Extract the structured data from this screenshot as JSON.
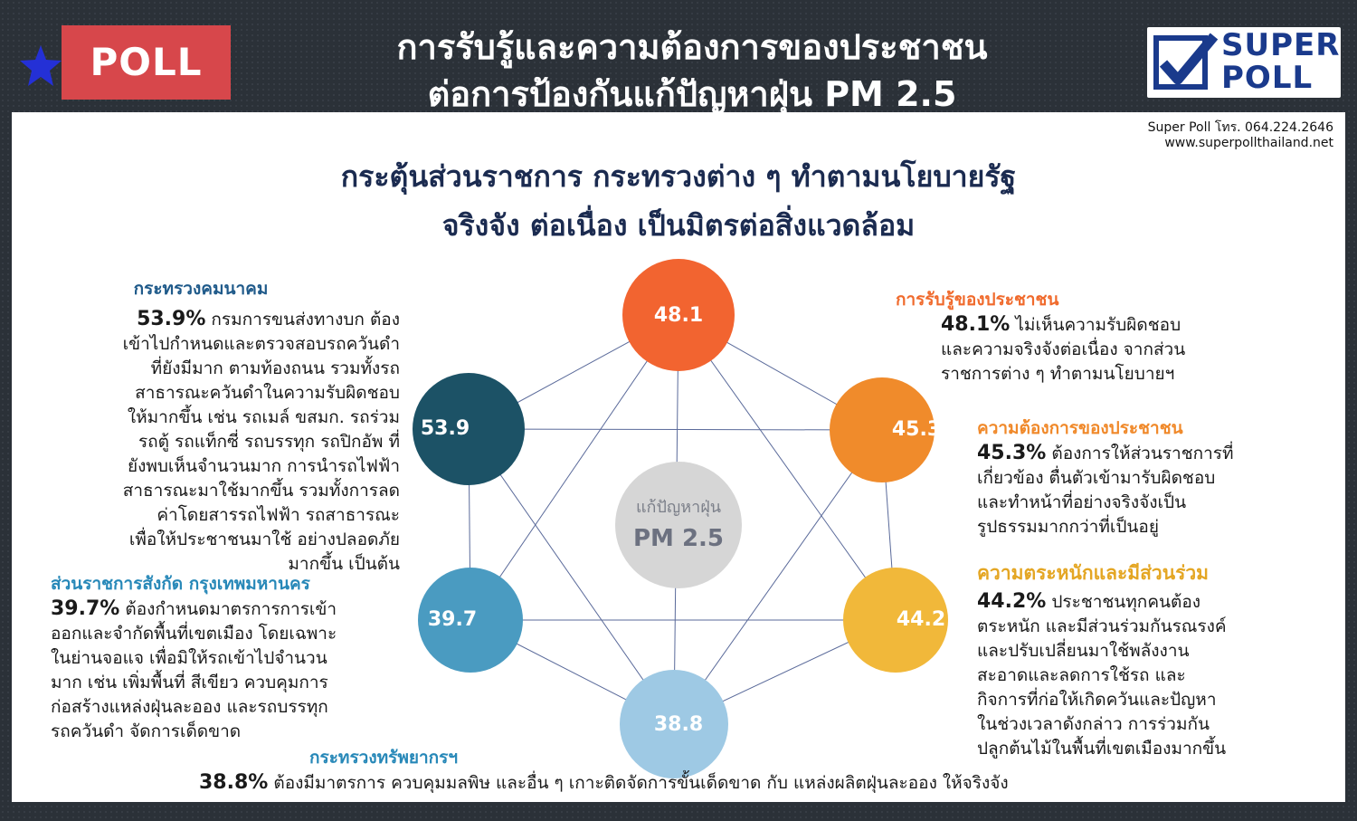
{
  "header": {
    "badge": "POLL",
    "title_line1": "การรับรู้และความต้องการของประชาชน",
    "title_line2": "ต่อการป้องกันแก้ปัญหาฝุ่น PM 2.5"
  },
  "logo": {
    "word1": "SUPER",
    "word2": "POLL"
  },
  "contact": {
    "phone": "Super Poll โทร. 064.224.2646",
    "website": "www.superpollthailand.net"
  },
  "subhead": {
    "line1": "กระตุ้นส่วนราชการ กระทรวงต่าง ๆ ทำตามนโยบายรัฐ",
    "line2": "จริงจัง ต่อเนื่อง เป็นมิตรต่อสิ่งแวดล้อม"
  },
  "center": {
    "line1": "แก้ปัญหาฝุ่น",
    "line2": "PM 2.5"
  },
  "nodes": [
    {
      "label": "48.1",
      "color": "#f26430"
    },
    {
      "label": "45.3",
      "color": "#f08b2b"
    },
    {
      "label": "44.2",
      "color": "#f1b83a"
    },
    {
      "label": "38.8",
      "color": "#9ec9e4"
    },
    {
      "label": "39.7",
      "color": "#4a9bc1"
    },
    {
      "label": "53.9",
      "color": "#1c5266"
    }
  ],
  "blocks": {
    "transport": {
      "heading": "กระทรวงคมนาคม",
      "pct": "53.9%",
      "lines": [
        " กรมการขนส่งทางบก ต้อง",
        "เข้าไปกำหนดและตรวจสอบรถควันดำ",
        "ที่ยังมีมาก ตามท้องถนน รวมทั้งรถ",
        "สาธารณะควันดำในความรับผิดชอบ",
        "ให้มากขึ้น เช่น รถเมล์ ขสมก. รถร่วม",
        "รถตู้ รถแท็กซี่ รถบรรทุก รถปิกอัพ ที่",
        "ยังพบเห็นจำนวนมาก การนำรถไฟฟ้า",
        "สาธารณะมาใช้มากขึ้น รวมทั้งการลด",
        "ค่าโดยสารรถไฟฟ้า รถสาธารณะ",
        "เพื่อให้ประชาชนมาใช้ อย่างปลอดภัย",
        "มากขึ้น เป็นต้น"
      ]
    },
    "bangkok": {
      "heading": "ส่วนราชการสังกัด กรุงเทพมหานคร",
      "pct": "39.7%",
      "lines": [
        " ต้องกำหนดมาตรการการเข้า",
        "ออกและจำกัดพื้นที่เขตเมือง โดยเฉพาะ",
        "ในย่านจอแจ เพื่อมิให้รถเข้าไปจำนวน",
        "มาก เช่น เพิ่มพื้นที่ สีเขียว  ควบคุมการ",
        "ก่อสร้างแหล่งฝุ่นละออง  และรถบรรทุก",
        "รถควันดำ จัดการเด็ดขาด"
      ]
    },
    "awareness": {
      "heading": "การรับรู้ของประชาชน",
      "pct": "48.1%",
      "lines": [
        " ไม่เห็นความรับผิดชอบ",
        "และความจริงจังต่อเนื่อง จากส่วน",
        "ราชการต่าง ๆ ทำตามนโยบายฯ"
      ]
    },
    "needs": {
      "heading": "ความต้องการของประชาชน",
      "pct": "45.3%",
      "lines": [
        " ต้องการให้ส่วนราชการที่",
        "เกี่ยวข้อง ตื่นตัวเข้ามารับผิดชอบ",
        "และทำหน้าที่อย่างจริงจังเป็น",
        "รูปธรรมมากกว่าที่เป็นอยู่"
      ]
    },
    "participation": {
      "heading": "ความตระหนักและมีส่วนร่วม",
      "pct": "44.2%",
      "lines": [
        " ประชาชนทุกคนต้อง",
        "ตระหนัก และมีส่วนร่วมกันรณรงค์",
        "และปรับเปลี่ยนมาใช้พลังงาน",
        "สะอาดและลดการใช้รถ และ",
        "กิจการที่ก่อให้เกิดควันและปัญหา",
        "ในช่วงเวลาดังกล่าว การร่วมกัน",
        "ปลูกต้นไม้ในพื้นที่เขตเมืองมากขึ้น"
      ]
    },
    "resources": {
      "heading": "กระทรวงทรัพยากรฯ",
      "pct": "38.8%",
      "text": " ต้องมีมาตรการ ควบคุมมลพิษ และอื่น ๆ เกาะติดจัดการขั้นเด็ดขาด กับ แหล่งผลิตฝุ่นละออง ให้จริงจัง"
    }
  }
}
